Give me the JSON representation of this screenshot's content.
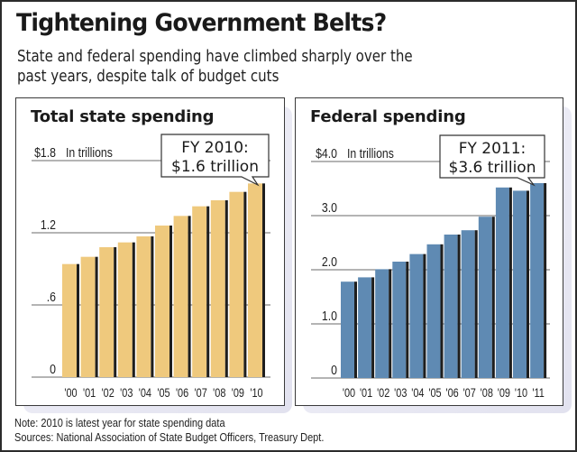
{
  "header": {
    "title": "Tightening Government Belts?",
    "subtitle_line1": "State and federal spending have climbed sharply over the",
    "subtitle_line2": "past years, despite talk of budget cuts"
  },
  "colors": {
    "state_bar": "#EFC97D",
    "federal_bar": "#5F8AB3",
    "bar_shadow": "#1e1e1e",
    "gridline": "#6a6a6a"
  },
  "chart_data": [
    {
      "type": "bar",
      "title": "Total state spending",
      "unit_label": "In trillions",
      "ylabel": "In trillions",
      "xlabel": "",
      "ylim": [
        0,
        1.8
      ],
      "yticks": [
        0,
        0.6,
        1.2,
        1.8
      ],
      "ytick_labels": [
        "0",
        ".6",
        "1.2",
        "$1.8"
      ],
      "grid": true,
      "categories": [
        "'00",
        "'01",
        "'02",
        "'03",
        "'04",
        "'05",
        "'06",
        "'07",
        "'08",
        "'09",
        "'10"
      ],
      "values": [
        0.94,
        1.0,
        1.08,
        1.12,
        1.17,
        1.26,
        1.34,
        1.42,
        1.47,
        1.54,
        1.61
      ],
      "annotation": {
        "line1": "FY 2010:",
        "line2": "$1.6 trillion",
        "target_category": "'10"
      }
    },
    {
      "type": "bar",
      "title": "Federal spending",
      "unit_label": "In trillions",
      "ylabel": "In trillions",
      "xlabel": "",
      "ylim": [
        0,
        4.0
      ],
      "yticks": [
        0,
        1.0,
        2.0,
        3.0,
        4.0
      ],
      "ytick_labels": [
        "0",
        "1.0",
        "2.0",
        "3.0",
        "$4.0"
      ],
      "grid": true,
      "categories": [
        "'00",
        "'01",
        "'02",
        "'03",
        "'04",
        "'05",
        "'06",
        "'07",
        "'08",
        "'09",
        "'10",
        "'11"
      ],
      "values": [
        1.78,
        1.86,
        2.01,
        2.15,
        2.29,
        2.47,
        2.65,
        2.73,
        2.98,
        3.52,
        3.46,
        3.6
      ],
      "annotation": {
        "line1": "FY 2011:",
        "line2": "$3.6 trillion",
        "target_category": "'11"
      }
    }
  ],
  "footer": {
    "note": "Note: 2010 is latest year for state spending data",
    "sources": "Sources: National Association of State Budget Officers, Treasury Dept."
  }
}
